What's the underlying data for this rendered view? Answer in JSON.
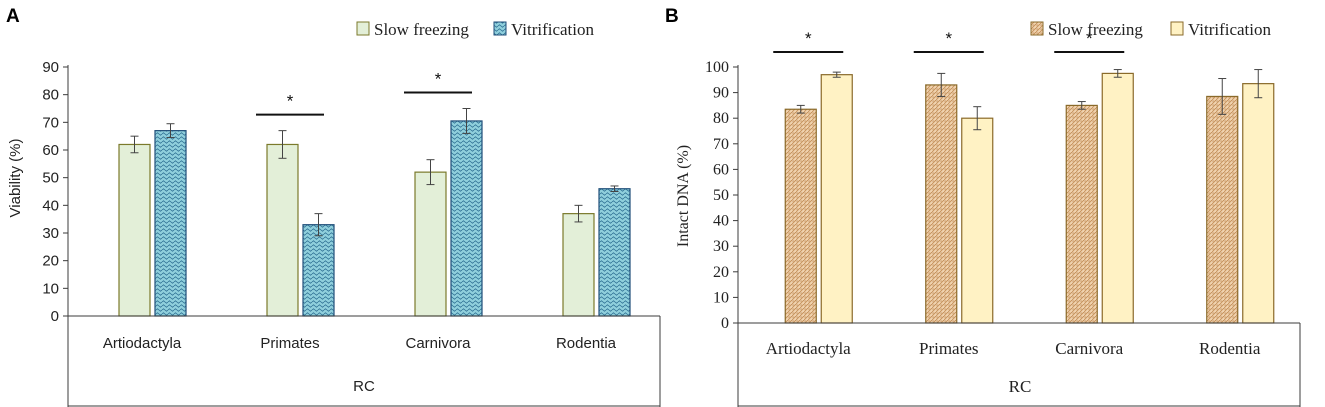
{
  "colors": {
    "a_slow_fill": "#e3efd8",
    "a_slow_stroke": "#7b7a2b",
    "a_vit_fill": "#8fcfdc",
    "a_vit_stroke": "#1f4e79",
    "b_slow_fill": "#e9c6a0",
    "b_slow_stroke": "#8a6a2a",
    "b_vit_fill": "#fff2c4",
    "b_vit_stroke": "#8a6a2a",
    "axis": "#3b3b3b",
    "text": "#222222"
  },
  "chart_data": [
    {
      "panel_label": "A",
      "type": "bar",
      "categories": [
        "Artiodactyla",
        "Primates",
        "Carnivora",
        "Rodentia"
      ],
      "group_label": "RC",
      "ylabel": "Viability (%)",
      "ylim": [
        0,
        90
      ],
      "yticks": [
        "0",
        "10",
        "20",
        "30",
        "40",
        "50",
        "60",
        "70",
        "80",
        "90"
      ],
      "legend_position": "top-right",
      "series": [
        {
          "name": "Slow freezing",
          "values": [
            62,
            62,
            52,
            37
          ],
          "errors": [
            3,
            5,
            4.5,
            3
          ]
        },
        {
          "name": "Vitrification",
          "values": [
            67,
            33,
            70.5,
            46
          ],
          "errors": [
            2.5,
            4,
            4.5,
            1
          ]
        }
      ],
      "significance": [
        {
          "category": "Primates",
          "marker": "*"
        },
        {
          "category": "Carnivora",
          "marker": "*"
        }
      ]
    },
    {
      "panel_label": "B",
      "type": "bar",
      "categories": [
        "Artiodactyla",
        "Primates",
        "Carnivora",
        "Rodentia"
      ],
      "group_label": "RC",
      "ylabel": "Intact DNA (%)",
      "ylim": [
        0,
        100
      ],
      "yticks": [
        "0",
        "10",
        "20",
        "30",
        "40",
        "50",
        "60",
        "70",
        "80",
        "90",
        "100"
      ],
      "legend_position": "top-right",
      "series": [
        {
          "name": "Slow freezing",
          "values": [
            83.5,
            93,
            85,
            88.5
          ],
          "errors": [
            1.5,
            4.5,
            1.5,
            7
          ]
        },
        {
          "name": "Vitrification",
          "values": [
            97,
            80,
            97.5,
            93.5
          ],
          "errors": [
            1,
            4.5,
            1.5,
            5.5
          ]
        }
      ],
      "significance": [
        {
          "category": "Artiodactyla",
          "marker": "*"
        },
        {
          "category": "Primates",
          "marker": "*"
        },
        {
          "category": "Carnivora",
          "marker": "*"
        }
      ]
    }
  ]
}
